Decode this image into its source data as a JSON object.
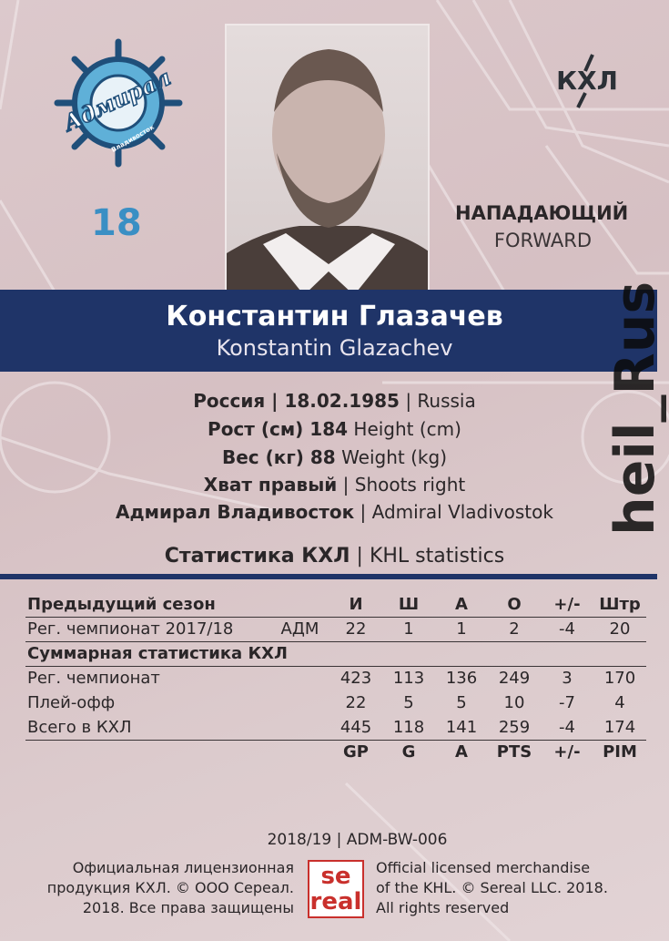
{
  "team": {
    "logo_text": "Адмирал",
    "logo_subtext": "Владивосток",
    "number": "18",
    "color": "#3a8fc4"
  },
  "league_logo": "КХЛ",
  "position": {
    "ru": "НАПАДАЮЩИЙ",
    "en": "FORWARD"
  },
  "player": {
    "name_ru": "Константин Глазачев",
    "name_en": "Konstantin Glazachev"
  },
  "bio": [
    {
      "bold": "Россия | 18.02.1985",
      "rest": " | Russia"
    },
    {
      "bold": "Рост (см) 184",
      "rest": " Height (cm)"
    },
    {
      "bold": "Вес (кг) 88",
      "rest": " Weight (kg)"
    },
    {
      "bold": "Хват правый",
      "rest": " | Shoots right"
    },
    {
      "bold": "Адмирал Владивосток",
      "rest": " | Admiral Vladivostok"
    }
  ],
  "stats": {
    "title_ru": "Статистика КХЛ",
    "title_sep": " | ",
    "title_en": "KHL statistics",
    "prev_header": "Предыдущий сезон",
    "columns_ru": [
      "И",
      "Ш",
      "А",
      "О",
      "+/-",
      "Штр"
    ],
    "prev_row": {
      "label": "Рег. чемпионат 2017/18",
      "team": "АДМ",
      "values": [
        "22",
        "1",
        "1",
        "2",
        "-4",
        "20"
      ]
    },
    "total_header": "Суммарная статистика КХЛ",
    "total_rows": [
      {
        "label": "Рег. чемпионат",
        "values": [
          "423",
          "113",
          "136",
          "249",
          "3",
          "170"
        ]
      },
      {
        "label": "Плей-офф",
        "values": [
          "22",
          "5",
          "5",
          "10",
          "-7",
          "4"
        ]
      },
      {
        "label": "Всего в КХЛ",
        "values": [
          "445",
          "118",
          "141",
          "259",
          "-4",
          "174"
        ]
      }
    ],
    "columns_en": [
      "GP",
      "G",
      "A",
      "PTS",
      "+/-",
      "PIM"
    ]
  },
  "footer": {
    "code": "2018/19 | ADM-BW-006",
    "ru": [
      "Официальная лицензионная",
      "продукция КХЛ. © ООО Сереал.",
      "2018. Все права защищены"
    ],
    "en": [
      "Official licensed merchandise",
      "of the KHL. © Sereal LLC. 2018.",
      "All rights reserved"
    ],
    "brand": [
      "se",
      "real"
    ]
  },
  "watermark": "heil_Rus",
  "colors": {
    "band": "#1f3468",
    "background": "#d9c5c8",
    "brand_red": "#c9302c"
  }
}
